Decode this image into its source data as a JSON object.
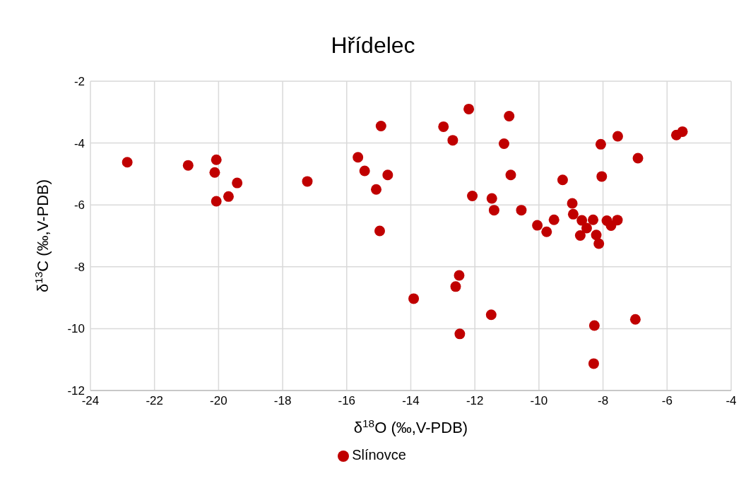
{
  "chart_data": {
    "type": "scatter",
    "title": "Hřídelec",
    "xlabel": "δ$^{18}$O (‰,V-PDB)",
    "ylabel": "δ$^{13}$C (‰,V-PDB)",
    "xlim": [
      -24,
      -4
    ],
    "xticks": [
      -24,
      -22,
      -20,
      -18,
      -16,
      -14,
      -12,
      -10,
      -8,
      -6,
      -4
    ],
    "ylim": [
      -12,
      -2
    ],
    "yticks": [
      -12,
      -10,
      -8,
      -6,
      -4,
      -2
    ],
    "grid": true,
    "legend": "bottom",
    "marker": "circle",
    "series": [
      {
        "name": "Slínovce",
        "color": "#c00000",
        "x": [
          -22.85,
          -20.95,
          -20.07,
          -20.12,
          -20.07,
          -19.69,
          -19.42,
          -17.23,
          -15.65,
          -15.44,
          -15.08,
          -14.72,
          -14.97,
          -14.93,
          -13.91,
          -12.98,
          -12.69,
          -12.19,
          -12.49,
          -12.6,
          -12.47,
          -12.08,
          -11.47,
          -11.4,
          -11.49,
          -11.09,
          -10.93,
          -10.88,
          -10.55,
          -10.05,
          -9.76,
          -9.53,
          -9.26,
          -8.96,
          -8.93,
          -8.66,
          -8.51,
          -8.71,
          -8.31,
          -8.21,
          -8.13,
          -7.88,
          -7.75,
          -7.55,
          -8.07,
          -8.04,
          -7.54,
          -6.91,
          -5.71,
          -5.52,
          -8.27,
          -8.29,
          -6.99
        ],
        "values": [
          -4.62,
          -4.72,
          -4.54,
          -4.95,
          -5.88,
          -5.73,
          -5.29,
          -5.24,
          -4.46,
          -4.9,
          -5.5,
          -5.03,
          -6.84,
          -3.45,
          -9.03,
          -3.47,
          -3.91,
          -2.9,
          -8.28,
          -8.64,
          -10.17,
          -5.71,
          -5.79,
          -6.17,
          -9.55,
          -4.02,
          -3.13,
          -5.03,
          -6.17,
          -6.66,
          -6.87,
          -6.48,
          -5.19,
          -5.95,
          -6.3,
          -6.5,
          -6.75,
          -6.99,
          -6.48,
          -6.97,
          -7.25,
          -6.51,
          -6.67,
          -6.49,
          -4.04,
          -5.08,
          -3.78,
          -4.49,
          -3.74,
          -3.63,
          -9.9,
          -11.13,
          -9.7
        ]
      }
    ]
  }
}
